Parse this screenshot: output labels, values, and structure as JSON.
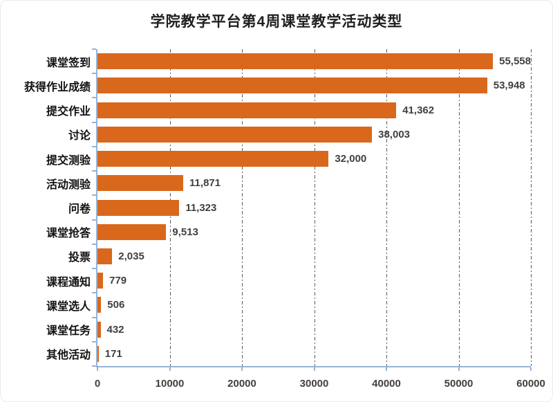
{
  "chart_data": {
    "type": "bar",
    "orientation": "horizontal",
    "title": "学院教学平台第4周课堂教学活动类型",
    "categories": [
      "课堂签到",
      "获得作业成绩",
      "提交作业",
      "讨论",
      "提交测验",
      "活动测验",
      "问卷",
      "课堂抢答",
      "投票",
      "课程通知",
      "课堂选人",
      "课堂任务",
      "其他活动"
    ],
    "values": [
      55558,
      53948,
      41362,
      38003,
      32000,
      11871,
      11323,
      9513,
      2035,
      779,
      506,
      432,
      171
    ],
    "value_labels": [
      "55,558",
      "53,948",
      "41,362",
      "38,003",
      "32,000",
      "11,871",
      "11,323",
      "9,513",
      "2,035",
      "779",
      "506",
      "432",
      "171"
    ],
    "xlabel": "",
    "ylabel": "",
    "xlim": [
      0,
      60000
    ],
    "x_ticks": [
      0,
      10000,
      20000,
      30000,
      40000,
      50000,
      60000
    ],
    "x_tick_labels": [
      "0",
      "10000",
      "20000",
      "30000",
      "40000",
      "50000",
      "60000"
    ],
    "grid": "vertical-dash-dot",
    "legend": "none",
    "colors": {
      "bar": "#d9681c",
      "axis": "#95b3d7",
      "gridline": "#5b5b5b",
      "value_label": "#404040",
      "category_label": "#111111",
      "title": "#1f1f1f",
      "background": "#ffffff"
    }
  }
}
